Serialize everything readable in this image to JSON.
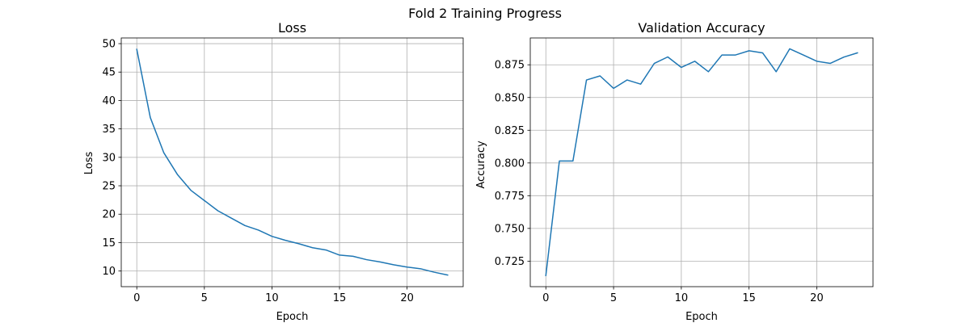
{
  "figure": {
    "suptitle": "Fold 2 Training Progress"
  },
  "colors": {
    "series": "#1f77b4",
    "grid": "#b0b0b0"
  },
  "chart_data": [
    {
      "type": "line",
      "title": "Loss",
      "xlabel": "Epoch",
      "ylabel": "Loss",
      "grid": true,
      "xlim": [
        -1.15,
        24.15
      ],
      "ylim": [
        7.25,
        51.0
      ],
      "xticks": [
        0,
        5,
        10,
        15,
        20
      ],
      "xtick_labels": [
        "0",
        "5",
        "10",
        "15",
        "20"
      ],
      "yticks": [
        10,
        15,
        20,
        25,
        30,
        35,
        40,
        45,
        50
      ],
      "ytick_labels": [
        "10",
        "15",
        "20",
        "25",
        "30",
        "35",
        "40",
        "45",
        "50"
      ],
      "series": [
        {
          "x": [
            0,
            1,
            2,
            3,
            4,
            5,
            6,
            7,
            8,
            9,
            10,
            11,
            12,
            13,
            14,
            15,
            16,
            17,
            18,
            19,
            20,
            21,
            22,
            23
          ],
          "values": [
            49.0,
            37.0,
            30.8,
            27.0,
            24.2,
            22.4,
            20.6,
            19.3,
            18.0,
            17.2,
            16.1,
            15.4,
            14.8,
            14.1,
            13.7,
            12.8,
            12.6,
            12.0,
            11.6,
            11.1,
            10.7,
            10.4,
            9.8,
            9.3
          ]
        }
      ]
    },
    {
      "type": "line",
      "title": "Validation Accuracy",
      "xlabel": "Epoch",
      "ylabel": "Accuracy",
      "grid": true,
      "xlim": [
        -1.15,
        24.15
      ],
      "ylim": [
        0.7055,
        0.8955
      ],
      "xticks": [
        0,
        5,
        10,
        15,
        20
      ],
      "xtick_labels": [
        "0",
        "5",
        "10",
        "15",
        "20"
      ],
      "yticks": [
        0.725,
        0.75,
        0.775,
        0.8,
        0.825,
        0.85,
        0.875
      ],
      "ytick_labels": [
        "0.725",
        "0.750",
        "0.775",
        "0.800",
        "0.825",
        "0.850",
        "0.875"
      ],
      "series": [
        {
          "x": [
            0,
            1,
            2,
            3,
            4,
            5,
            6,
            7,
            8,
            9,
            10,
            11,
            12,
            13,
            14,
            15,
            16,
            17,
            18,
            19,
            20,
            21,
            22,
            23
          ],
          "values": [
            0.714,
            0.8015,
            0.8015,
            0.8634,
            0.8665,
            0.857,
            0.8634,
            0.8602,
            0.876,
            0.881,
            0.873,
            0.8777,
            0.8697,
            0.8825,
            0.8825,
            0.8857,
            0.8841,
            0.8697,
            0.8872,
            0.8825,
            0.8777,
            0.8761,
            0.8809,
            0.8841
          ]
        }
      ]
    }
  ]
}
